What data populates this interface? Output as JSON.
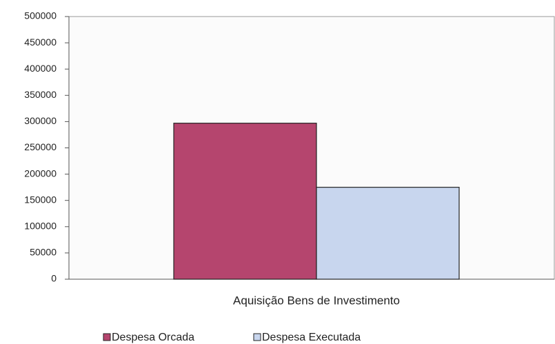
{
  "chart_data": {
    "type": "bar",
    "categories": [
      "Aquisição Bens de Investimento"
    ],
    "series": [
      {
        "name": "Despesa Orcada",
        "color": "#b5456e",
        "values": [
          297000
        ]
      },
      {
        "name": "Despesa Executada",
        "color": "#c8d6ee",
        "values": [
          175000
        ]
      }
    ],
    "ylim": [
      0,
      500000
    ],
    "yticks": [
      0,
      50000,
      100000,
      150000,
      200000,
      250000,
      300000,
      350000,
      400000,
      450000,
      500000
    ],
    "grid": false,
    "legend": "bottom"
  }
}
